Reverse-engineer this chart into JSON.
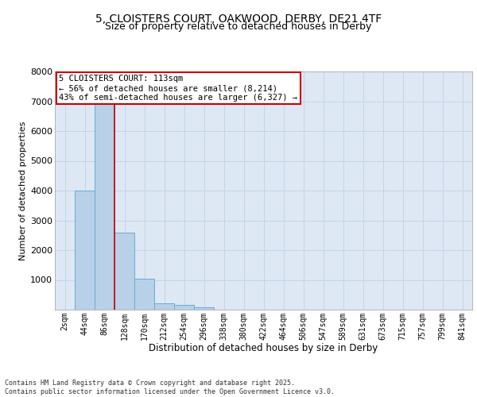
{
  "title_line1": "5, CLOISTERS COURT, OAKWOOD, DERBY, DE21 4TF",
  "title_line2": "Size of property relative to detached houses in Derby",
  "xlabel": "Distribution of detached houses by size in Derby",
  "ylabel": "Number of detached properties",
  "categories": [
    "2sqm",
    "44sqm",
    "86sqm",
    "128sqm",
    "170sqm",
    "212sqm",
    "254sqm",
    "296sqm",
    "338sqm",
    "380sqm",
    "422sqm",
    "464sqm",
    "506sqm",
    "547sqm",
    "589sqm",
    "631sqm",
    "673sqm",
    "715sqm",
    "757sqm",
    "799sqm",
    "841sqm"
  ],
  "bar_values": [
    0,
    4000,
    7300,
    2600,
    1050,
    210,
    150,
    80,
    0,
    0,
    0,
    0,
    0,
    0,
    0,
    0,
    0,
    0,
    0,
    0,
    0
  ],
  "bar_color": "#b8d0e8",
  "bar_edge_color": "#6aaad4",
  "grid_color": "#c5d5e5",
  "background_color": "#dde8f4",
  "vline_x": 2.5,
  "vline_color": "#cc0000",
  "annotation_text": "5 CLOISTERS COURT: 113sqm\n← 56% of detached houses are smaller (8,214)\n43% of semi-detached houses are larger (6,327) →",
  "annotation_box_color": "#cc0000",
  "footer_text": "Contains HM Land Registry data © Crown copyright and database right 2025.\nContains public sector information licensed under the Open Government Licence v3.0.",
  "ylim": [
    0,
    8000
  ],
  "yticks": [
    0,
    1000,
    2000,
    3000,
    4000,
    5000,
    6000,
    7000,
    8000
  ]
}
